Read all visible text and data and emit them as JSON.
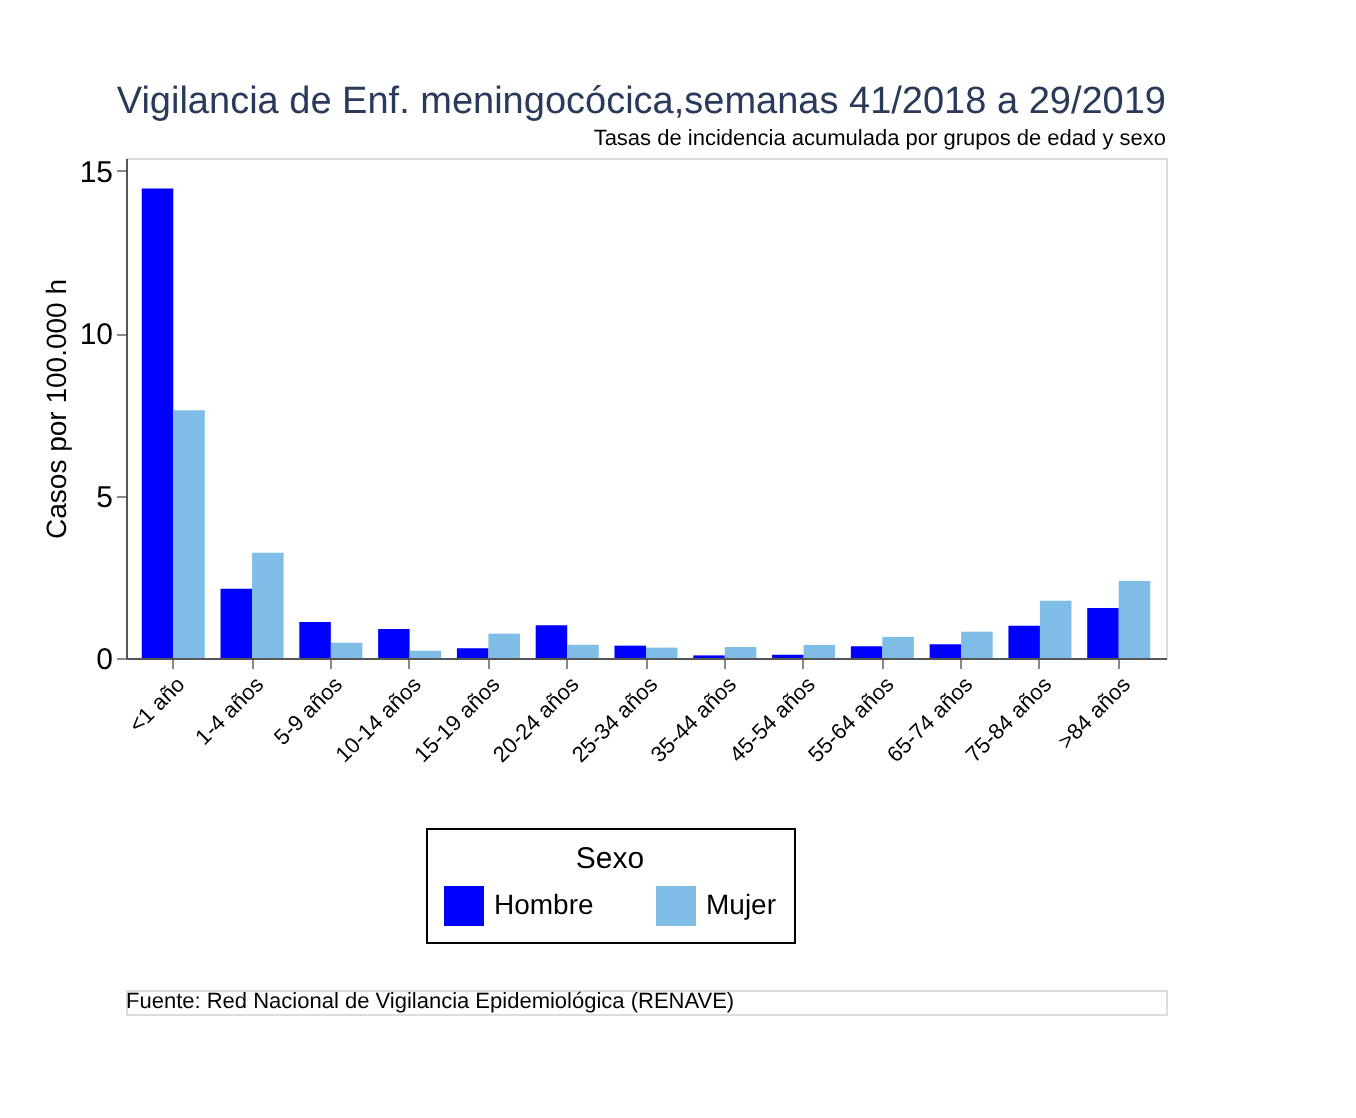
{
  "chart_data": {
    "type": "bar",
    "title": "Vigilancia de Enf. meningocócica,semanas 41/2018 a 29/2019",
    "subtitle": "Tasas de incidencia acumulada por grupos de edad y sexo",
    "ylabel": "Casos por 100.000 h",
    "legend_title": "Sexo",
    "legend": "bottom",
    "grid": false,
    "categories": [
      "<1 año",
      "1-4 años",
      "5-9 años",
      "10-14 años",
      "15-19 años",
      "20-24 años",
      "25-34 años",
      "35-44 años",
      "45-54 años",
      "55-64 años",
      "65-74 años",
      "75-84 años",
      ">84 años"
    ],
    "series": [
      {
        "name": "Hombre",
        "color": "#0000ff",
        "values": [
          14.46,
          2.13,
          1.11,
          0.89,
          0.3,
          1.01,
          0.38,
          0.08,
          0.1,
          0.36,
          0.42,
          0.99,
          1.54
        ]
      },
      {
        "name": "Mujer",
        "color": "#7fbde6",
        "values": [
          7.63,
          3.24,
          0.47,
          0.22,
          0.75,
          0.41,
          0.32,
          0.34,
          0.4,
          0.65,
          0.81,
          1.76,
          2.37
        ]
      }
    ],
    "ylim": [
      0,
      15.4
    ],
    "yticks": [
      0,
      5,
      10,
      15
    ],
    "annotations": [
      "Fuente: Red Nacional de Vigilancia Epidemiológica (RENAVE)"
    ]
  }
}
